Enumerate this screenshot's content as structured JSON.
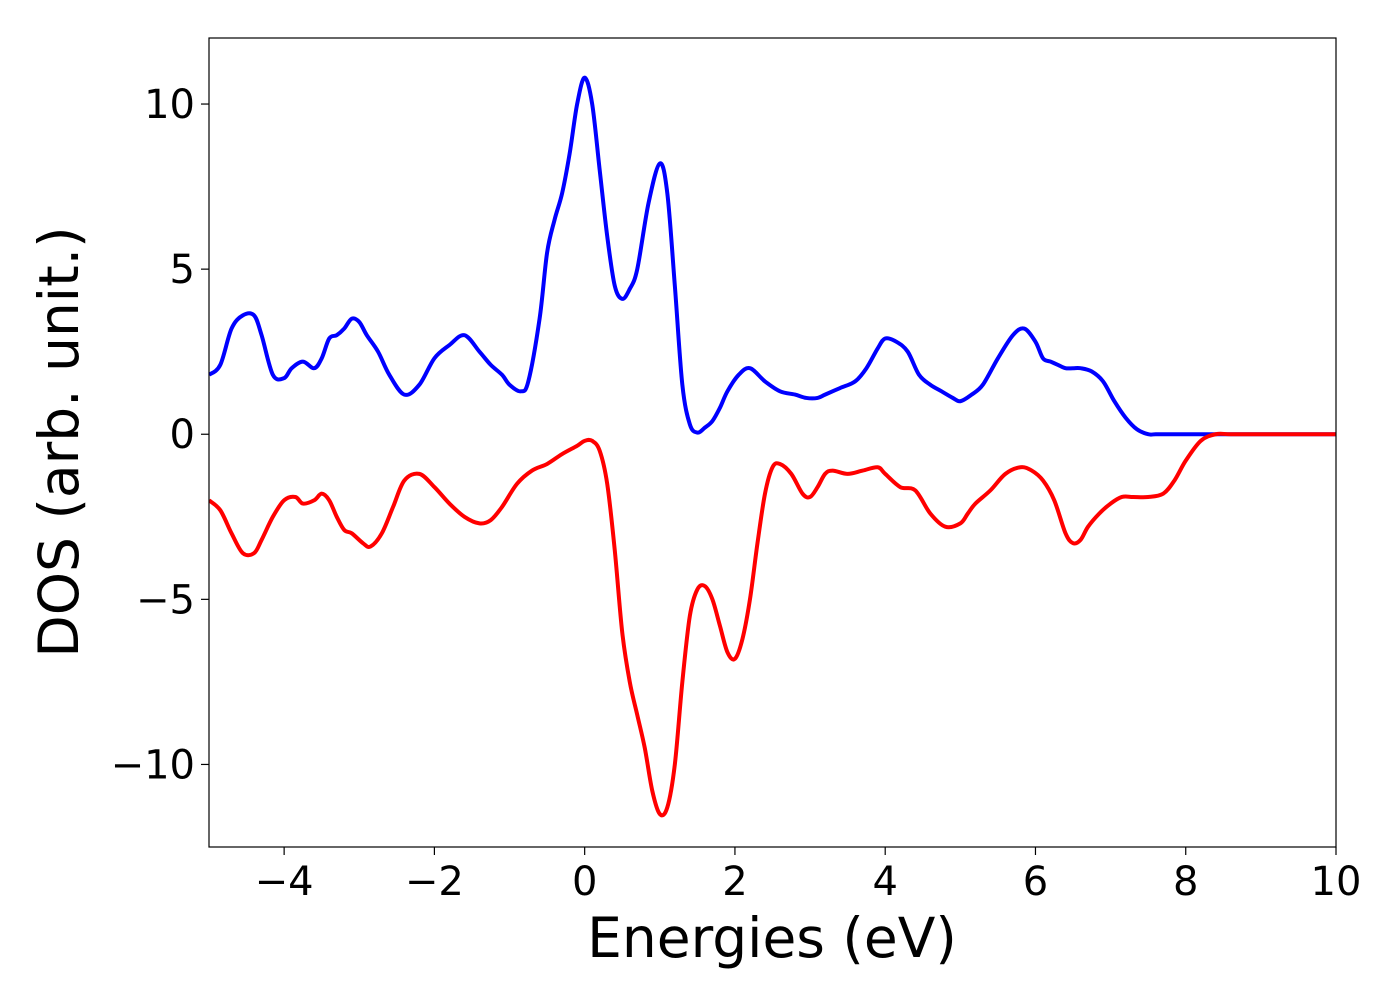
{
  "chart_data": {
    "type": "line",
    "title": "",
    "xlabel": "Energies (eV)",
    "ylabel": "DOS (arb. unit.)",
    "xlim": [
      -5,
      10
    ],
    "ylim": [
      -12.5,
      12
    ],
    "grid": false,
    "xticks": [
      -4,
      -2,
      0,
      2,
      4,
      6,
      8,
      10
    ],
    "xtick_labels": [
      "−4",
      "−2",
      "0",
      "2",
      "4",
      "6",
      "8",
      "10"
    ],
    "yticks": [
      10,
      5,
      0,
      -5,
      -10
    ],
    "ytick_labels": [
      "10",
      "5",
      "0",
      "−5",
      "−10"
    ],
    "series": [
      {
        "color": "#0000ff",
        "x": [
          -5.0,
          -4.85,
          -4.7,
          -4.55,
          -4.4,
          -4.3,
          -4.15,
          -4.0,
          -3.9,
          -3.75,
          -3.6,
          -3.5,
          -3.4,
          -3.3,
          -3.2,
          -3.1,
          -3.0,
          -2.9,
          -2.75,
          -2.6,
          -2.4,
          -2.2,
          -2.0,
          -1.8,
          -1.6,
          -1.4,
          -1.25,
          -1.1,
          -1.0,
          -0.85,
          -0.75,
          -0.6,
          -0.5,
          -0.4,
          -0.3,
          -0.2,
          -0.1,
          0.0,
          0.1,
          0.2,
          0.3,
          0.4,
          0.5,
          0.6,
          0.7,
          0.85,
          1.0,
          1.1,
          1.2,
          1.3,
          1.4,
          1.5,
          1.6,
          1.7,
          1.8,
          1.9,
          2.05,
          2.2,
          2.4,
          2.6,
          2.8,
          2.95,
          3.1,
          3.2,
          3.4,
          3.6,
          3.75,
          3.9,
          4.0,
          4.15,
          4.3,
          4.45,
          4.6,
          4.75,
          4.9,
          5.0,
          5.15,
          5.3,
          5.5,
          5.7,
          5.85,
          6.0,
          6.1,
          6.2,
          6.3,
          6.4,
          6.5,
          6.6,
          6.75,
          6.9,
          7.05,
          7.2,
          7.35,
          7.5,
          7.6,
          7.75,
          7.9,
          8.05,
          8.2,
          8.4,
          8.6,
          9.0,
          10.0
        ],
        "y": [
          1.8,
          2.1,
          3.2,
          3.6,
          3.6,
          3.0,
          1.8,
          1.7,
          2.0,
          2.2,
          2.0,
          2.3,
          2.9,
          3.0,
          3.2,
          3.5,
          3.4,
          3.0,
          2.5,
          1.8,
          1.2,
          1.5,
          2.3,
          2.7,
          3.0,
          2.5,
          2.1,
          1.8,
          1.5,
          1.3,
          1.6,
          3.5,
          5.5,
          6.5,
          7.3,
          8.5,
          10.0,
          10.8,
          10.0,
          8.0,
          6.0,
          4.5,
          4.1,
          4.4,
          5.0,
          7.0,
          8.2,
          7.3,
          4.5,
          1.5,
          0.3,
          0.05,
          0.2,
          0.4,
          0.8,
          1.3,
          1.8,
          2.0,
          1.6,
          1.3,
          1.2,
          1.1,
          1.1,
          1.2,
          1.4,
          1.6,
          2.0,
          2.6,
          2.9,
          2.8,
          2.5,
          1.8,
          1.5,
          1.3,
          1.1,
          1.0,
          1.2,
          1.5,
          2.3,
          3.0,
          3.2,
          2.8,
          2.3,
          2.2,
          2.1,
          2.0,
          2.0,
          2.0,
          1.9,
          1.6,
          1.0,
          0.5,
          0.15,
          0.0,
          0.0,
          0.0,
          0.0,
          0.0,
          0.0,
          0.0,
          0.0,
          0.0,
          0.0
        ]
      },
      {
        "color": "#ff0000",
        "x": [
          -5.0,
          -4.85,
          -4.7,
          -4.55,
          -4.4,
          -4.3,
          -4.15,
          -4.0,
          -3.85,
          -3.75,
          -3.6,
          -3.5,
          -3.4,
          -3.3,
          -3.2,
          -3.1,
          -2.95,
          -2.85,
          -2.7,
          -2.55,
          -2.4,
          -2.2,
          -2.0,
          -1.8,
          -1.6,
          -1.4,
          -1.25,
          -1.1,
          -0.9,
          -0.7,
          -0.5,
          -0.3,
          -0.1,
          0.0,
          0.1,
          0.2,
          0.3,
          0.4,
          0.5,
          0.6,
          0.7,
          0.8,
          0.9,
          1.0,
          1.1,
          1.2,
          1.3,
          1.4,
          1.5,
          1.6,
          1.7,
          1.8,
          1.9,
          2.0,
          2.1,
          2.2,
          2.3,
          2.4,
          2.5,
          2.6,
          2.75,
          2.9,
          3.0,
          3.1,
          3.2,
          3.3,
          3.5,
          3.7,
          3.9,
          4.0,
          4.2,
          4.4,
          4.6,
          4.8,
          5.0,
          5.1,
          5.2,
          5.4,
          5.6,
          5.8,
          5.95,
          6.1,
          6.25,
          6.4,
          6.5,
          6.6,
          6.7,
          6.85,
          7.0,
          7.15,
          7.3,
          7.5,
          7.7,
          7.85,
          8.0,
          8.2,
          8.4,
          8.6,
          9.0,
          10.0
        ],
        "y": [
          -2.0,
          -2.3,
          -3.0,
          -3.6,
          -3.6,
          -3.2,
          -2.5,
          -2.0,
          -1.9,
          -2.1,
          -2.0,
          -1.8,
          -2.0,
          -2.5,
          -2.9,
          -3.0,
          -3.3,
          -3.4,
          -3.0,
          -2.2,
          -1.4,
          -1.2,
          -1.6,
          -2.1,
          -2.5,
          -2.7,
          -2.6,
          -2.2,
          -1.5,
          -1.1,
          -0.9,
          -0.6,
          -0.35,
          -0.2,
          -0.2,
          -0.5,
          -1.5,
          -3.5,
          -6.0,
          -7.5,
          -8.5,
          -9.5,
          -10.8,
          -11.5,
          -11.3,
          -10.0,
          -7.5,
          -5.5,
          -4.7,
          -4.6,
          -5.0,
          -5.8,
          -6.6,
          -6.8,
          -6.2,
          -5.0,
          -3.3,
          -1.8,
          -1.0,
          -0.9,
          -1.2,
          -1.8,
          -1.9,
          -1.6,
          -1.2,
          -1.1,
          -1.2,
          -1.1,
          -1.0,
          -1.2,
          -1.6,
          -1.7,
          -2.4,
          -2.8,
          -2.7,
          -2.4,
          -2.1,
          -1.7,
          -1.2,
          -1.0,
          -1.1,
          -1.4,
          -2.0,
          -3.0,
          -3.3,
          -3.2,
          -2.8,
          -2.4,
          -2.1,
          -1.9,
          -1.9,
          -1.9,
          -1.8,
          -1.4,
          -0.8,
          -0.2,
          0.0,
          0.0,
          0.0,
          0.0
        ]
      }
    ]
  }
}
